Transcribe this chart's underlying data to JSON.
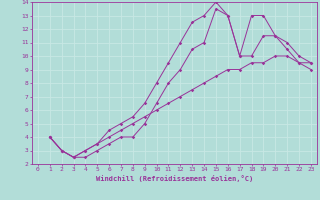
{
  "xlabel": "Windchill (Refroidissement éolien,°C)",
  "bg_color": "#b2ddd8",
  "line_color": "#993399",
  "grid_color": "#c8e8e4",
  "xlim": [
    -0.5,
    23.5
  ],
  "ylim": [
    2,
    14
  ],
  "xticks": [
    0,
    1,
    2,
    3,
    4,
    5,
    6,
    7,
    8,
    9,
    10,
    11,
    12,
    13,
    14,
    15,
    16,
    17,
    18,
    19,
    20,
    21,
    22,
    23
  ],
  "yticks": [
    2,
    3,
    4,
    5,
    6,
    7,
    8,
    9,
    10,
    11,
    12,
    13,
    14
  ],
  "series": [
    {
      "x": [
        1,
        2,
        3,
        4,
        5,
        6,
        7,
        8,
        9,
        10,
        11,
        12,
        13,
        14,
        15,
        16,
        17,
        18,
        19,
        20,
        21,
        22,
        23
      ],
      "y": [
        4,
        3,
        2.5,
        3,
        3.5,
        4,
        4.5,
        5,
        5.5,
        6,
        6.5,
        7,
        7.5,
        8,
        8.5,
        9,
        9,
        9.5,
        9.5,
        10,
        10,
        9.5,
        9.5
      ]
    },
    {
      "x": [
        1,
        2,
        3,
        4,
        5,
        6,
        7,
        8,
        9,
        10,
        11,
        12,
        13,
        14,
        15,
        16,
        17,
        18,
        19,
        20,
        21,
        22,
        23
      ],
      "y": [
        4,
        3,
        2.5,
        3,
        3.5,
        4.5,
        5,
        5.5,
        6.5,
        8,
        9.5,
        11,
        12.5,
        13,
        14,
        13,
        10,
        13,
        13,
        11.5,
        11,
        10,
        9.5
      ]
    },
    {
      "x": [
        1,
        2,
        3,
        4,
        5,
        6,
        7,
        8,
        9,
        10,
        11,
        12,
        13,
        14,
        15,
        16,
        17,
        18,
        19,
        20,
        21,
        22,
        23
      ],
      "y": [
        4,
        3,
        2.5,
        2.5,
        3,
        3.5,
        4,
        4,
        5,
        6.5,
        8,
        9,
        10.5,
        11,
        13.5,
        13,
        10,
        10,
        11.5,
        11.5,
        10.5,
        9.5,
        9
      ]
    }
  ]
}
